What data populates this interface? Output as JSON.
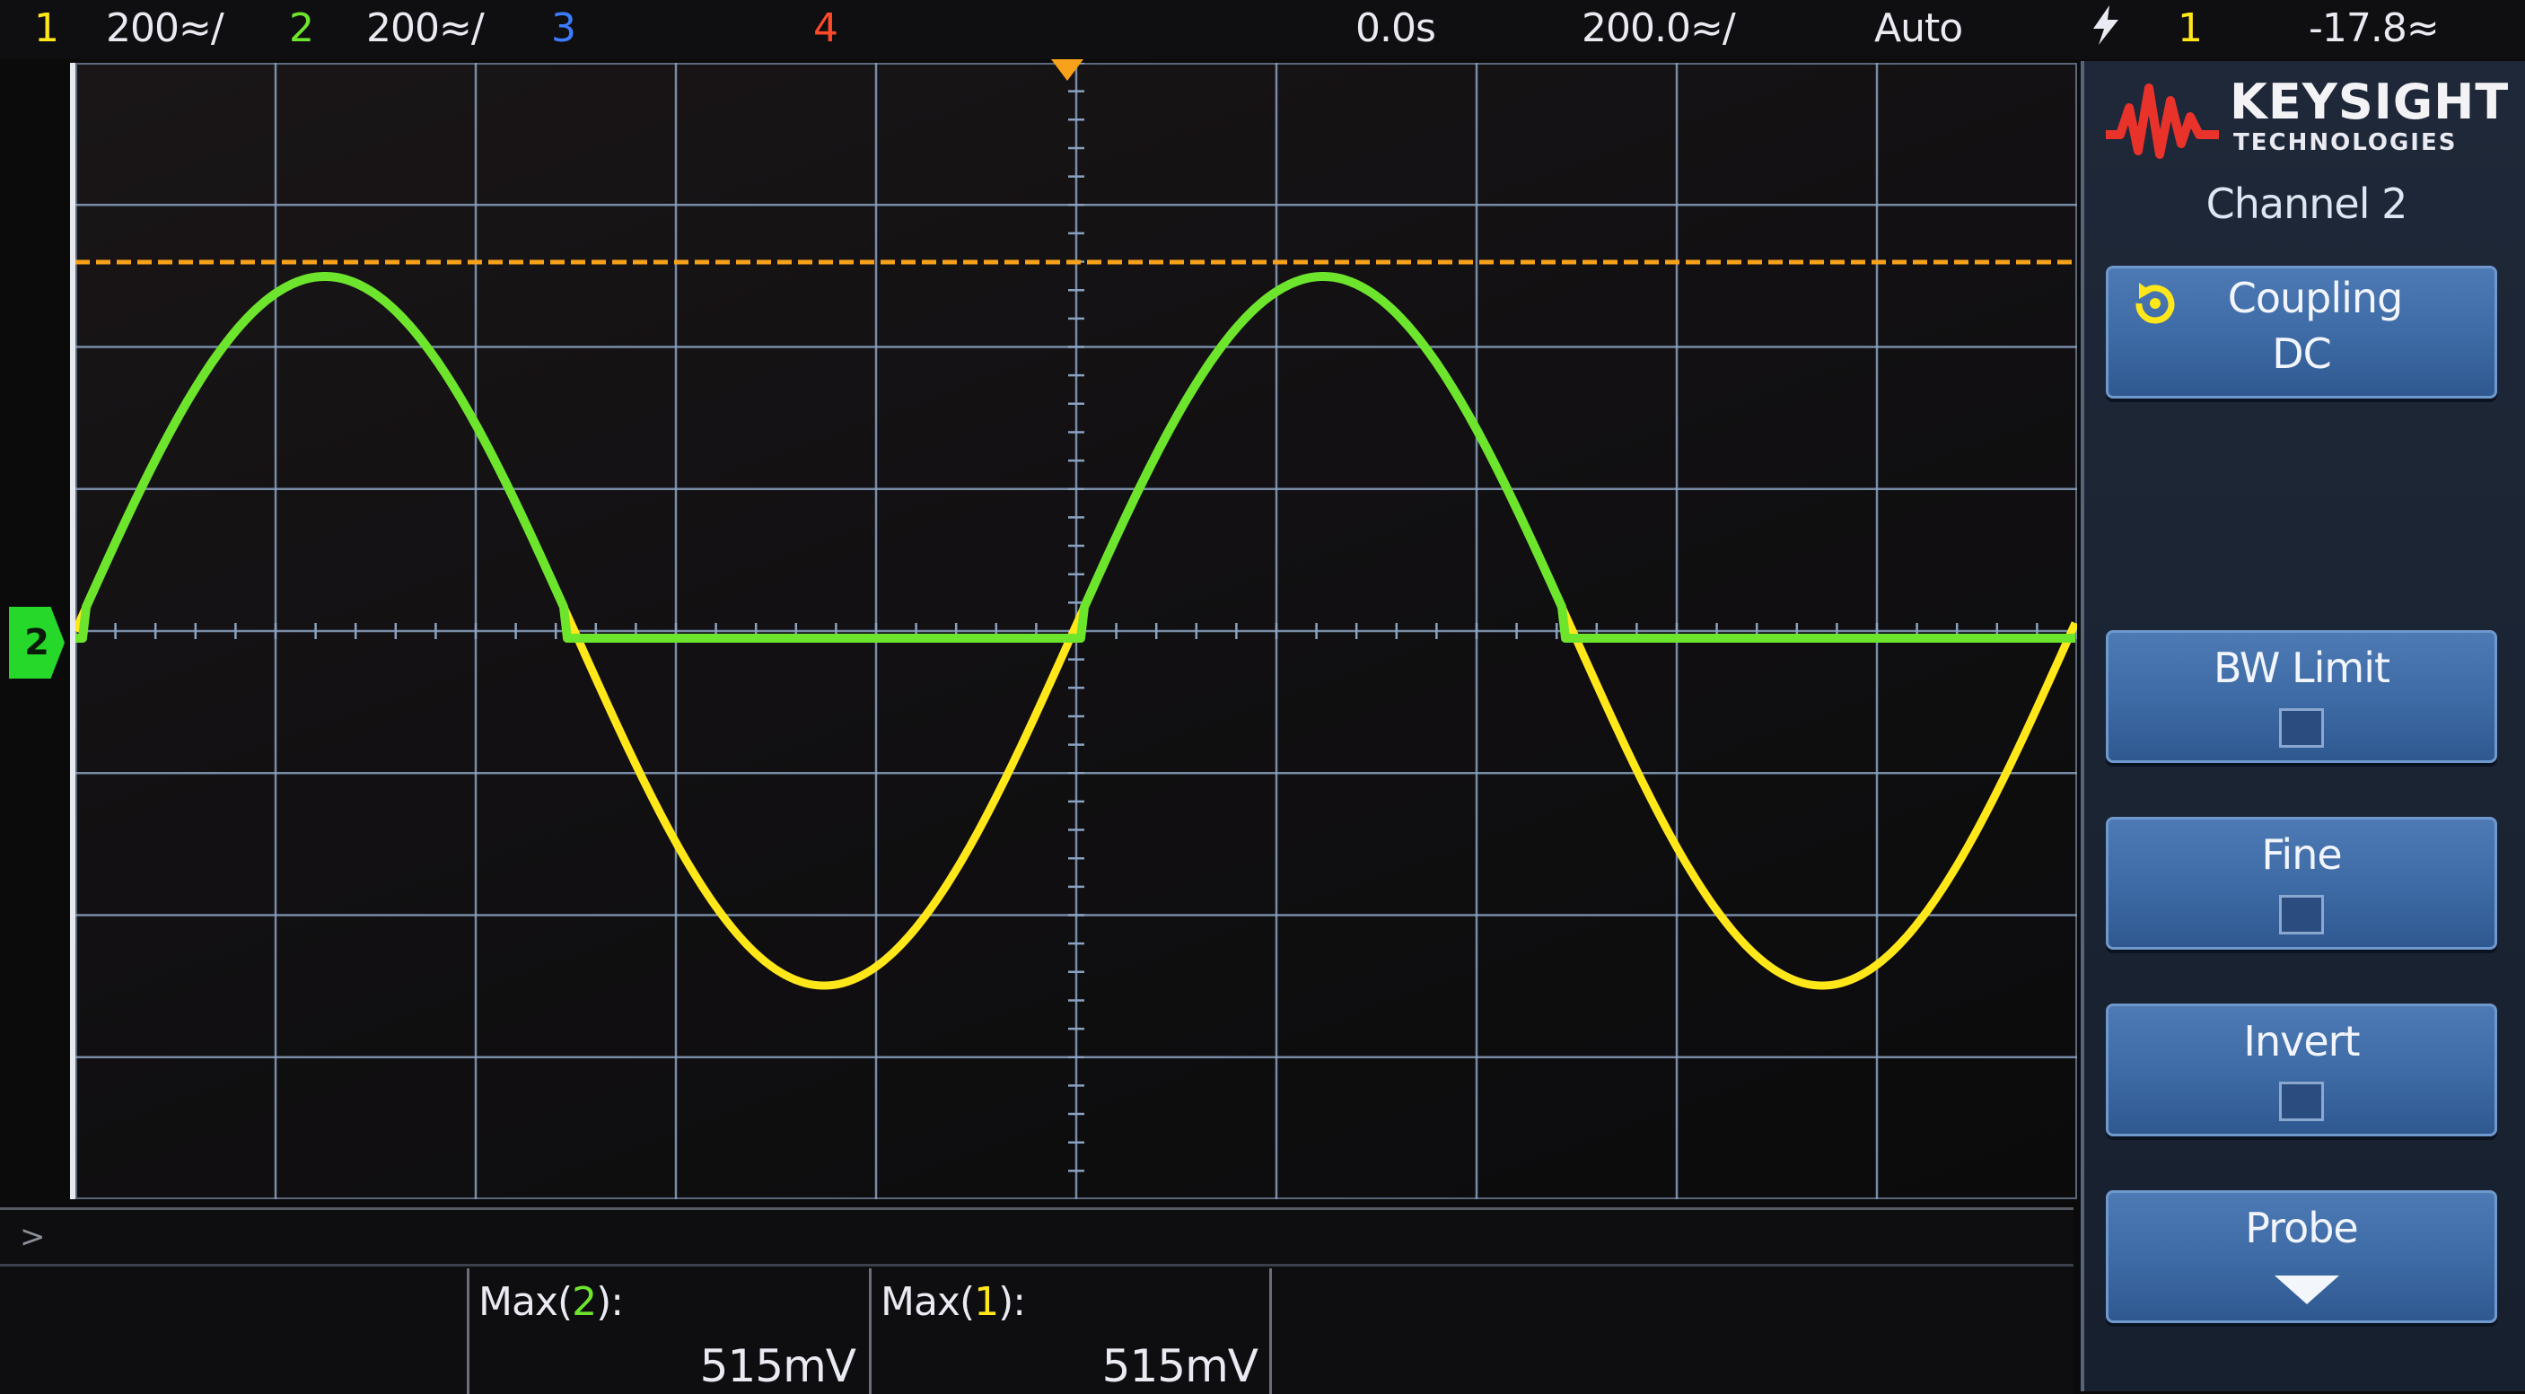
{
  "status": {
    "ch1_num": "1",
    "ch1_scale": "200≈/",
    "ch2_num": "2",
    "ch2_scale": "200≈/",
    "ch3_num": "3",
    "ch4_num": "4",
    "time_delay": "0.0s",
    "time_scale": "200.0≈/",
    "trigger_mode": "Auto",
    "trigger_icon": "lightning-icon",
    "trigger_source": "1",
    "trigger_level": "-17.8≈"
  },
  "ground_marker": "2",
  "measurements": [
    {
      "label": "Max(",
      "source": "2",
      "label_end": "):",
      "value": "515mV"
    },
    {
      "label": "Max(",
      "source": "1",
      "label_end": "):",
      "value": "515mV"
    }
  ],
  "softkeys": {
    "brand": "KEYSIGHT",
    "brand_sub": "TECHNOLOGIES",
    "title": "Channel 2",
    "coupling_label": "Coupling",
    "coupling_value": "DC",
    "bw_limit_label": "BW Limit",
    "fine_label": "Fine",
    "invert_label": "Invert",
    "probe_label": "Probe"
  },
  "colors": {
    "ch1": "#ffe71a",
    "ch2": "#6ee52d",
    "ch3": "#3c7cff",
    "ch4": "#ff4a2a",
    "trigger_level_line": "#f7a21a",
    "grid": "#8aa2c2",
    "softkey": "#3d6aa4"
  }
}
